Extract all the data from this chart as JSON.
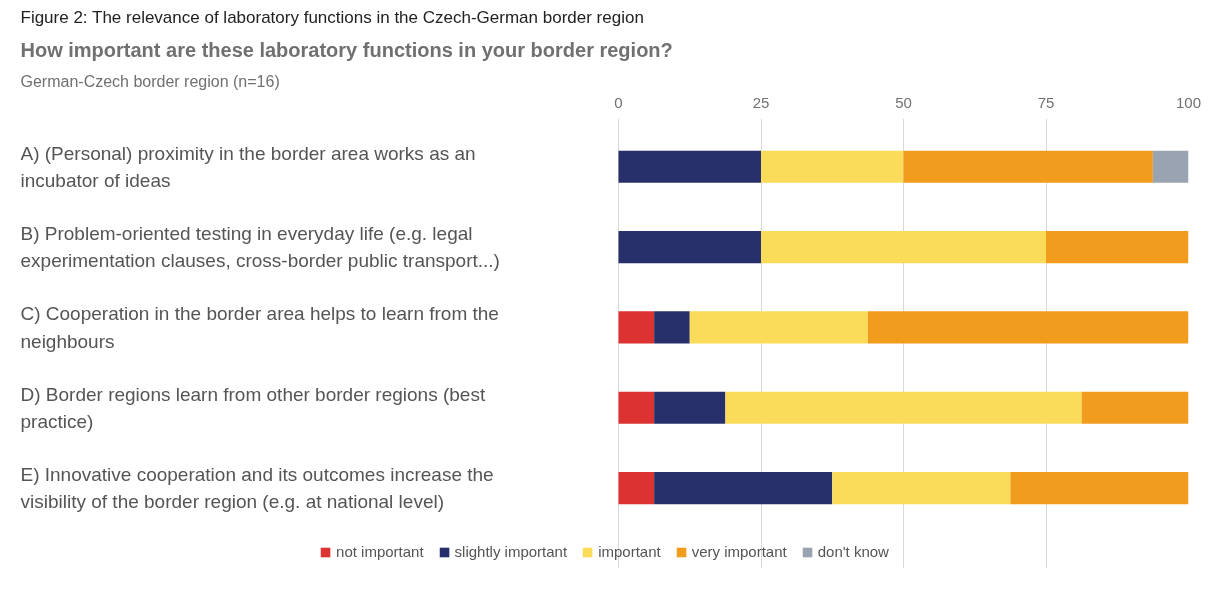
{
  "chart_data": {
    "type": "bar",
    "orientation": "horizontal",
    "stacked": true,
    "title": "How important are these laboratory functions in your border region?",
    "subtitle": "German-Czech border region (n=16)",
    "annotations": [
      "Figure 2: The relevance of laboratory functions in the Czech-German border region"
    ],
    "categories": [
      "A) (Personal) proximity in the border area works as an incubator of ideas",
      "B) Problem-oriented testing in everyday life (e.g. legal experimentation clauses, cross-border public transport...)",
      "C) Cooperation in the border area helps to learn from the neighbours",
      "D) Border regions learn from other border regions (best practice)",
      "E) Innovative cooperation and its outcomes increase the visibility of the border region (e.g. at national level)"
    ],
    "series": [
      {
        "name": "not important",
        "color": "#dc3232",
        "values": [
          0,
          0,
          6.25,
          6.25,
          6.25
        ]
      },
      {
        "name": "slightly important",
        "color": "#27306b",
        "values": [
          25,
          25,
          6.25,
          12.5,
          31.25
        ]
      },
      {
        "name": "important",
        "color": "#fadc5a",
        "values": [
          25,
          50,
          31.25,
          62.5,
          31.25
        ]
      },
      {
        "name": "very important",
        "color": "#f29c1e",
        "values": [
          43.75,
          25,
          56.25,
          18.75,
          31.25
        ]
      },
      {
        "name": "don't know",
        "color": "#9aa3b1",
        "values": [
          6.25,
          0,
          0,
          0,
          0
        ]
      }
    ],
    "xlim": [
      0,
      100
    ],
    "xticks": [
      0,
      25,
      50,
      75,
      100
    ],
    "grid": "x",
    "legend": "bottom"
  }
}
